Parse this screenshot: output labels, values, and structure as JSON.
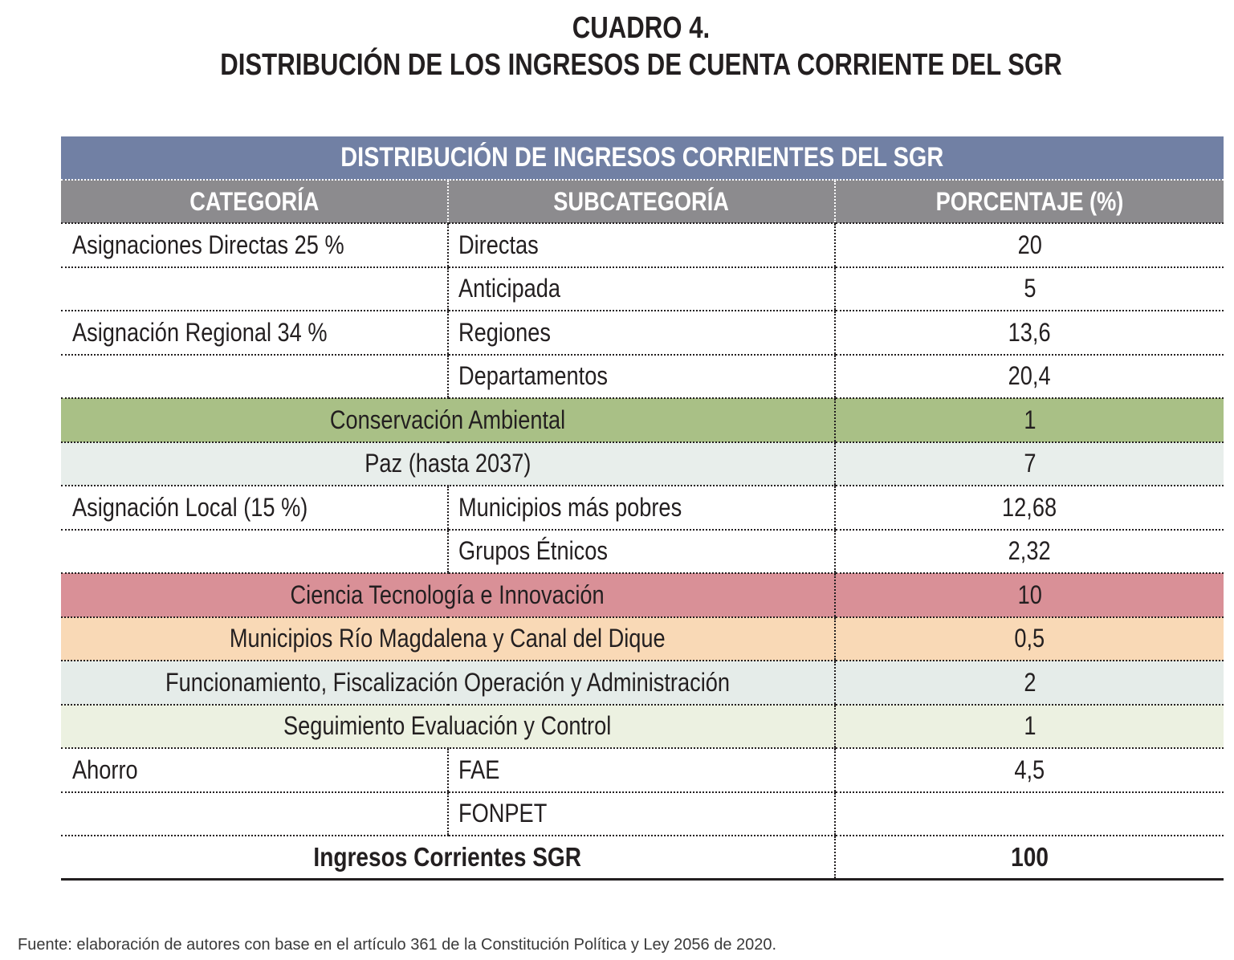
{
  "title": {
    "line1": "CUADRO 4.",
    "line2": "DISTRIBUCIÓN DE LOS INGRESOS DE CUENTA CORRIENTE DEL SGR"
  },
  "table": {
    "main_header": "DISTRIBUCIÓN DE INGRESOS CORRIENTES DEL SGR",
    "columns": [
      "CATEGORÍA",
      "SUBCATEGORÍA",
      "PORCENTAJE (%)"
    ],
    "rows": [
      {
        "category": "Asignaciones Directas 25 %",
        "subcategory": "Directas",
        "percent": "20"
      },
      {
        "category": "",
        "subcategory": "Anticipada",
        "percent": "5"
      },
      {
        "category": "Asignación Regional 34 %",
        "subcategory": "Regiones",
        "percent": "13,6"
      },
      {
        "category": "",
        "subcategory": "Departamentos",
        "percent": "20,4"
      },
      {
        "category": "Conservación Ambiental",
        "percent": "1"
      },
      {
        "category": "Paz (hasta 2037)",
        "percent": "7"
      },
      {
        "category": "Asignación Local (15 %)",
        "subcategory": "Municipios más pobres",
        "percent": "12,68"
      },
      {
        "category": "",
        "subcategory": "Grupos Étnicos",
        "percent": "2,32"
      },
      {
        "category": "Ciencia Tecnología e Innovación",
        "percent": "10"
      },
      {
        "category": "Municipios Río Magdalena y Canal del Dique",
        "percent": "0,5"
      },
      {
        "category": "Funcionamiento, Fiscalización Operación y Administración",
        "percent": "2"
      },
      {
        "category": "Seguimiento Evaluación y Control",
        "percent": "1"
      },
      {
        "category": "Ahorro",
        "subcategory": "FAE",
        "percent": "4,5"
      },
      {
        "category": "",
        "subcategory": "FONPET",
        "percent": ""
      }
    ],
    "total": {
      "label": "Ingresos Corrientes SGR",
      "percent": "100"
    }
  },
  "colors": {
    "header_blue": "#7180a4",
    "header_grey": "#8c8b8e",
    "green": "#a9c086",
    "pink": "#d99097",
    "peach": "#f9d9b6"
  },
  "source": "Fuente: elaboración de autores con base en el artículo 361 de la Constitución Política y Ley 2056 de 2020."
}
